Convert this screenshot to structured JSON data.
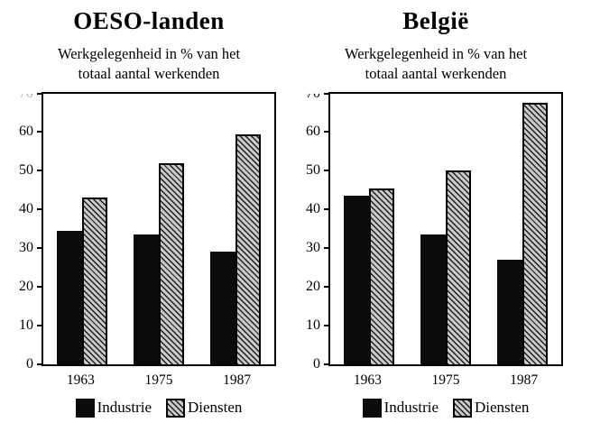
{
  "page": {
    "background": "#ffffff"
  },
  "colors": {
    "industrie_fill": "#0b0b0b",
    "diensten_hatch_line": "#1d1d1d",
    "diensten_hatch_bg": "#c9c9c9",
    "axis": "#000000"
  },
  "chart_data": [
    {
      "type": "bar",
      "title": "OESO-landen",
      "subtitle_line1": "Werkgelegenheid in % van het",
      "subtitle_line2": "totaal aantal werkenden",
      "categories": [
        "1963",
        "1975",
        "1987"
      ],
      "series": [
        {
          "name": "Industrie",
          "values": [
            34.5,
            33.5,
            29
          ]
        },
        {
          "name": "Diensten",
          "values": [
            43,
            52,
            59.5
          ]
        }
      ],
      "xlabel": "",
      "ylabel": "",
      "ylim": [
        0,
        70
      ],
      "yticks": [
        0,
        10,
        20,
        30,
        40,
        50,
        60,
        70
      ],
      "grid": false,
      "legend": [
        "Industrie",
        "Diensten"
      ],
      "legend_position": "bottom"
    },
    {
      "type": "bar",
      "title": "België",
      "subtitle_line1": "Werkgelegenheid in % van het",
      "subtitle_line2": "totaal aantal werkenden",
      "categories": [
        "1963",
        "1975",
        "1987"
      ],
      "series": [
        {
          "name": "Industrie",
          "values": [
            43.5,
            33.5,
            27
          ]
        },
        {
          "name": "Diensten",
          "values": [
            45.5,
            50,
            67.5
          ]
        }
      ],
      "xlabel": "",
      "ylabel": "",
      "ylim": [
        0,
        70
      ],
      "yticks": [
        0,
        10,
        20,
        30,
        40,
        50,
        60,
        70
      ],
      "grid": false,
      "legend": [
        "Industrie",
        "Diensten"
      ],
      "legend_position": "bottom"
    }
  ]
}
